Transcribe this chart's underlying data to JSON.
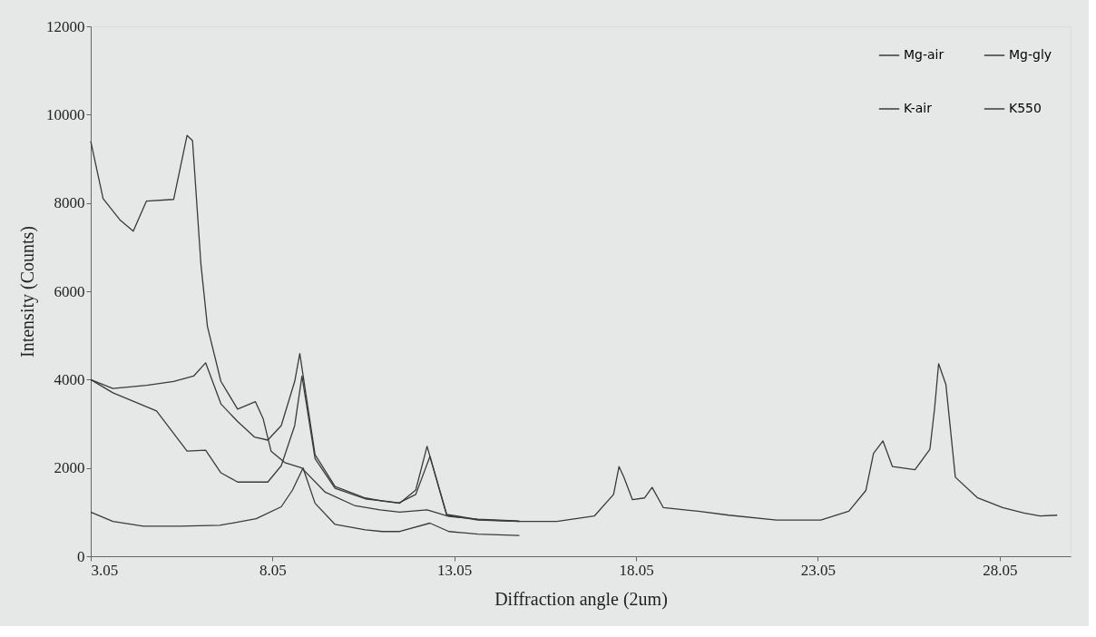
{
  "chart_data": {
    "type": "line",
    "xlabel": "Diffraction angle (2um)",
    "ylabel": "Intensity (Counts)",
    "xlim": [
      3.05,
      30
    ],
    "xticks": [
      3.05,
      8.05,
      13.05,
      18.05,
      23.05,
      28.05
    ],
    "ylim": [
      0,
      12000
    ],
    "yticks": [
      0,
      2000,
      4000,
      6000,
      8000,
      10000,
      12000
    ],
    "grid": false,
    "legend": "top right",
    "marker": "none",
    "line_style": "solid",
    "series": [
      {
        "name": "Mg-air",
        "color": "#3a3a3a",
        "x": [
          3.05,
          3.66,
          4.59,
          5.33,
          5.88,
          6.21,
          6.63,
          7.09,
          7.55,
          7.92,
          8.29,
          8.66,
          8.8,
          9.22,
          9.77,
          10.6,
          11.07,
          11.55,
          11.99,
          12.3,
          12.84,
          13.7,
          14.84
        ],
        "values": [
          4000,
          3800,
          3870,
          3960,
          4080,
          4380,
          3450,
          3050,
          2700,
          2630,
          2960,
          3960,
          4590,
          2300,
          1580,
          1320,
          1250,
          1200,
          1500,
          2490,
          950,
          830,
          790
        ]
      },
      {
        "name": "Mg-gly",
        "color": "#3a3a3a",
        "x": [
          3.05,
          3.39,
          3.85,
          4.22,
          4.58,
          5.33,
          5.7,
          5.85,
          6.08,
          6.26,
          6.63,
          7.09,
          7.58,
          7.79,
          8.01,
          8.39,
          8.85,
          9.5,
          10.3,
          11.0,
          11.55,
          12.3,
          12.9,
          13.7,
          14.84
        ],
        "values": [
          9400,
          8100,
          7620,
          7360,
          8040,
          8080,
          9530,
          9410,
          6620,
          5200,
          3960,
          3330,
          3500,
          3120,
          2380,
          2120,
          2000,
          1450,
          1150,
          1050,
          1000,
          1050,
          900,
          840,
          800
        ]
      },
      {
        "name": "K-air",
        "color": "#3a3a3a",
        "x": [
          3.05,
          3.66,
          4.86,
          5.7,
          6.21,
          6.63,
          7.09,
          7.92,
          8.29,
          8.66,
          8.86,
          9.22,
          9.77,
          10.6,
          11.53,
          11.99,
          12.38,
          12.84,
          13.7,
          14.84,
          15.87,
          16.9,
          17.43,
          17.58,
          17.71,
          17.95,
          18.28,
          18.49,
          18.8,
          19.76,
          20.6,
          21.91,
          23.13,
          23.9,
          24.37,
          24.58,
          24.84,
          25.1,
          25.72,
          26.13,
          26.26,
          26.37,
          26.57,
          26.83,
          27.43,
          28.13,
          28.72,
          29.16,
          29.63
        ],
        "values": [
          4000,
          3700,
          3290,
          2380,
          2400,
          1890,
          1680,
          1680,
          2050,
          2960,
          4080,
          2210,
          1540,
          1300,
          1210,
          1400,
          2260,
          930,
          820,
          790,
          790,
          910,
          1400,
          2030,
          1800,
          1280,
          1320,
          1560,
          1100,
          1020,
          930,
          820,
          820,
          1020,
          1490,
          2330,
          2610,
          2030,
          1960,
          2420,
          3350,
          4360,
          3890,
          1790,
          1330,
          1100,
          980,
          910,
          930
        ]
      },
      {
        "name": "K550",
        "color": "#3a3a3a",
        "x": [
          3.05,
          3.66,
          4.5,
          5.5,
          6.6,
          7.6,
          8.29,
          8.6,
          8.89,
          9.22,
          9.77,
          10.6,
          11.07,
          11.55,
          12.38,
          12.9,
          13.7,
          14.84
        ],
        "values": [
          1000,
          790,
          680,
          680,
          700,
          850,
          1120,
          1500,
          2000,
          1200,
          720,
          600,
          560,
          560,
          750,
          560,
          500,
          470
        ]
      }
    ]
  }
}
